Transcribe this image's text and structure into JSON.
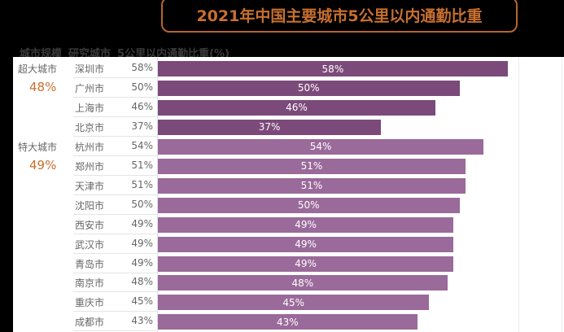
{
  "chart_data": {
    "type": "bar",
    "title": "2021年中国主要城市5公里以内通勤比重",
    "headers": [
      "城市规模",
      "研究城市",
      "5公里以内通勤比重(%)"
    ],
    "groups": [
      {
        "name": "超大城市",
        "avg": "48%",
        "color": "#7b4a7a",
        "cities": [
          "深圳市",
          "广州市",
          "上海市",
          "北京市"
        ],
        "values": [
          58,
          50,
          46,
          37
        ]
      },
      {
        "name": "特大城市",
        "avg": "49%",
        "color": "#9a6a9a",
        "cities": [
          "杭州市",
          "郑州市",
          "天津市",
          "沈阳市",
          "西安市",
          "武汉市",
          "青岛市",
          "南京市",
          "重庆市",
          "成都市"
        ],
        "values": [
          54,
          51,
          51,
          50,
          49,
          49,
          49,
          48,
          45,
          43
        ]
      }
    ],
    "xlim": [
      0,
      65
    ]
  }
}
